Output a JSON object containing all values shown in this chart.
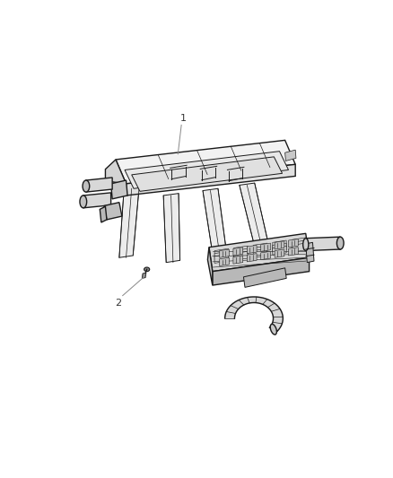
{
  "bg_color": "#ffffff",
  "line_color": "#1a1a1a",
  "lw_main": 1.0,
  "lw_thin": 0.5,
  "lw_med": 0.7,
  "fig_width": 4.38,
  "fig_height": 5.33,
  "dpi": 100,
  "label_1": "1",
  "label_2": "2",
  "ecm_color_top": "#f2f2f2",
  "ecm_color_side": "#d4d4d4",
  "ecm_color_front": "#e0e0e0",
  "ribbon_color": "#e8e8e8",
  "conn_color_top": "#d8d8d8",
  "conn_color_side": "#c0c0c0",
  "bracket_color": "#d0d0d0",
  "tube_color": "#d8d8d8",
  "wire_color": "#c8c8c8",
  "callout_color": "#888888"
}
